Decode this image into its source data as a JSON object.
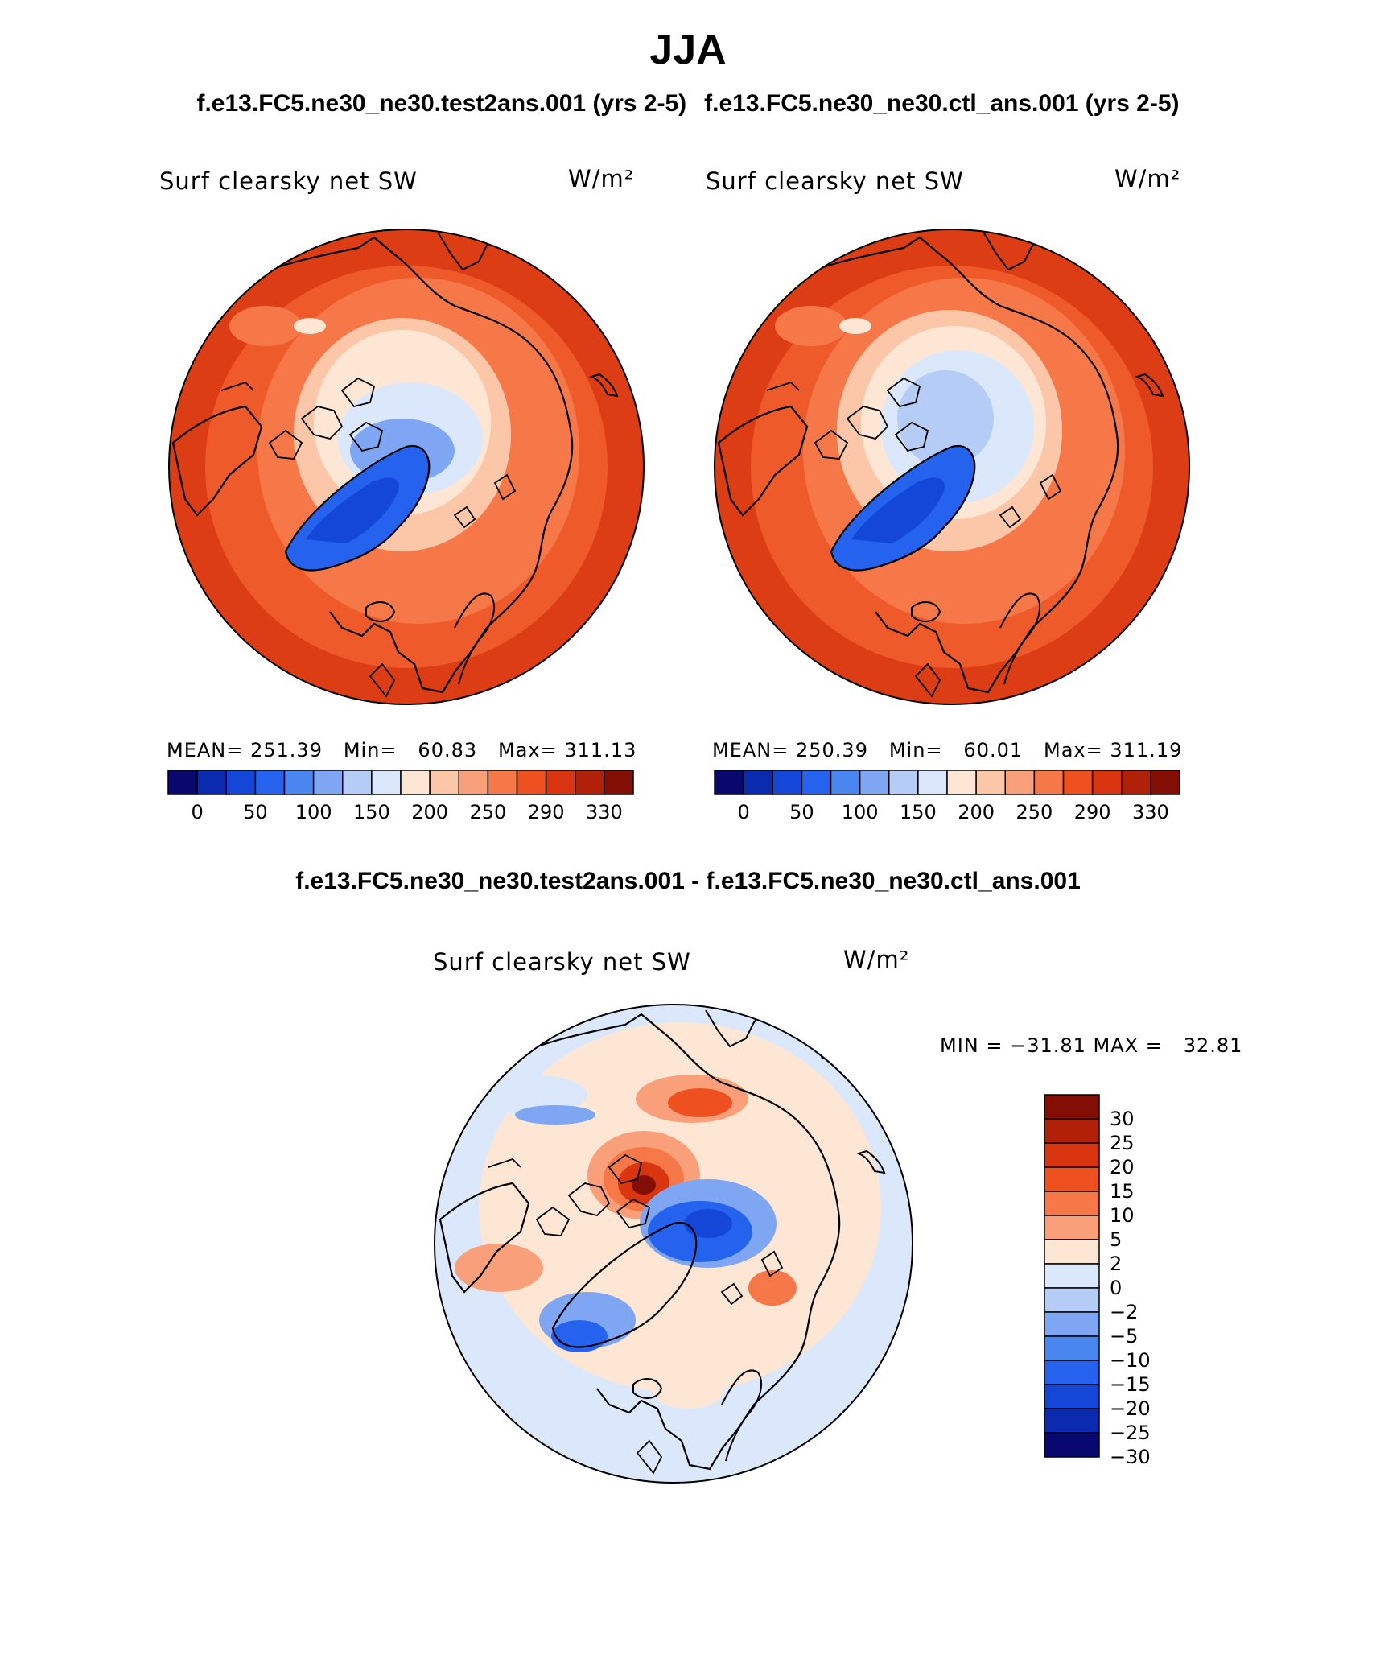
{
  "title": "JJA",
  "subtitles": [
    "f.e13.FC5.ne30_ne30.test2ans.001 (yrs 2-5)",
    "f.e13.FC5.ne30_ne30.ctl_ans.001 (yrs 2-5)"
  ],
  "diff_title": "f.e13.FC5.ne30_ne30.test2ans.001 - f.e13.FC5.ne30_ne30.ctl_ans.001",
  "variable": "Surf clearsky net SW",
  "units": "W/m²",
  "panels": [
    {
      "id": "test",
      "stats": "MEAN= 251.39   Min=   60.83   Max= 311.13"
    },
    {
      "id": "control",
      "stats": "MEAN= 250.39   Min=   60.01   Max= 311.19"
    }
  ],
  "diff_stats": "MIN = −31.81 MAX =   32.81",
  "colorbar_abs": {
    "tick_labels": [
      "0",
      "50",
      "100",
      "150",
      "200",
      "250",
      "290",
      "330"
    ],
    "colors": [
      "#08086e",
      "#0a2bb0",
      "#1447d8",
      "#2563ee",
      "#4a86f0",
      "#7ea6f2",
      "#b4ccf6",
      "#dbe8fb",
      "#fde6d4",
      "#fcc7a8",
      "#f9a07a",
      "#f67848",
      "#ef5020",
      "#d93510",
      "#b12008",
      "#820e04"
    ]
  },
  "colorbar_diff": {
    "labels": [
      "30",
      "25",
      "20",
      "15",
      "10",
      "5",
      "2",
      "0",
      "−2",
      "−5",
      "−10",
      "−15",
      "−20",
      "−25",
      "−30"
    ],
    "colors": [
      "#820e04",
      "#b12008",
      "#d93510",
      "#ef5020",
      "#f67848",
      "#f9a07a",
      "#fde6d4",
      "#dbe8fb",
      "#b4ccf6",
      "#7ea6f2",
      "#4a86f0",
      "#2563ee",
      "#1447d8",
      "#0a2bb0",
      "#08086e"
    ]
  },
  "map_colors": {
    "warm_bg": "#ef5a2a",
    "warm_mid": "#f67848",
    "warm_dark": "#dc3d14",
    "neutral_light": "#fde6d4",
    "blue_light": "#dbe8fb",
    "blue_mid": "#4a86f0",
    "blue_dark": "#1447d8"
  }
}
